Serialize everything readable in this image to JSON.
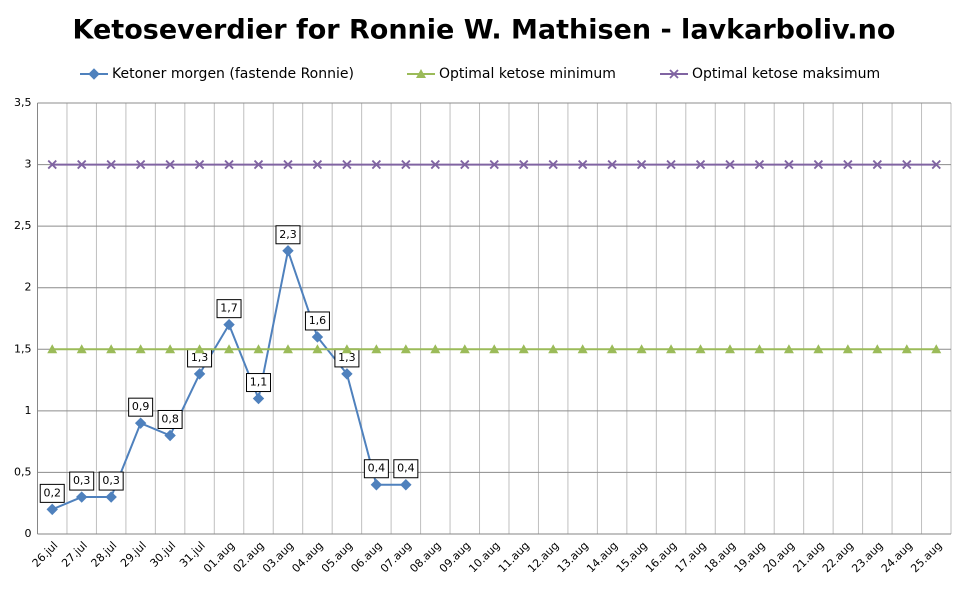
{
  "chart_data": {
    "type": "line",
    "title": "Ketoseverdier for Ronnie W. Mathisen - lavkarboliv.no",
    "categories": [
      "26.jul",
      "27.jul",
      "28.jul",
      "29.jul",
      "30.jul",
      "31.jul",
      "01.aug",
      "02.aug",
      "03.aug",
      "04.aug",
      "05.aug",
      "06.aug",
      "07.aug",
      "08.aug",
      "09.aug",
      "10.aug",
      "11.aug",
      "12.aug",
      "13.aug",
      "14.aug",
      "15.aug",
      "16.aug",
      "17.aug",
      "18.aug",
      "19.aug",
      "20.aug",
      "21.aug",
      "22.aug",
      "23.aug",
      "24.aug",
      "25.aug"
    ],
    "series": [
      {
        "name": "Ketoner morgen (fastende Ronnie)",
        "color": "#4f81bd",
        "marker": "diamond",
        "values": [
          0.2,
          0.3,
          0.3,
          0.9,
          0.8,
          1.3,
          1.7,
          1.1,
          2.3,
          1.6,
          1.3,
          0.4,
          0.4,
          null,
          null,
          null,
          null,
          null,
          null,
          null,
          null,
          null,
          null,
          null,
          null,
          null,
          null,
          null,
          null,
          null,
          null
        ],
        "value_labels": [
          "0,2",
          "0,3",
          "0,3",
          "0,9",
          "0,8",
          "1,3",
          "1,7",
          "1,1",
          "2,3",
          "1,6",
          "1,3",
          "0,4",
          "0,4",
          null,
          null,
          null,
          null,
          null,
          null,
          null,
          null,
          null,
          null,
          null,
          null,
          null,
          null,
          null,
          null,
          null,
          null
        ]
      },
      {
        "name": "Optimal ketose minimum",
        "color": "#9bbb59",
        "marker": "triangle",
        "values": [
          1.5,
          1.5,
          1.5,
          1.5,
          1.5,
          1.5,
          1.5,
          1.5,
          1.5,
          1.5,
          1.5,
          1.5,
          1.5,
          1.5,
          1.5,
          1.5,
          1.5,
          1.5,
          1.5,
          1.5,
          1.5,
          1.5,
          1.5,
          1.5,
          1.5,
          1.5,
          1.5,
          1.5,
          1.5,
          1.5,
          1.5
        ]
      },
      {
        "name": "Optimal ketose maksimum",
        "color": "#8064a2",
        "marker": "x",
        "values": [
          3,
          3,
          3,
          3,
          3,
          3,
          3,
          3,
          3,
          3,
          3,
          3,
          3,
          3,
          3,
          3,
          3,
          3,
          3,
          3,
          3,
          3,
          3,
          3,
          3,
          3,
          3,
          3,
          3,
          3,
          3
        ]
      }
    ],
    "ylim": [
      0,
      3.5
    ],
    "yticks": [
      0,
      {
        "value": 0.5,
        "label": "0,5"
      },
      1,
      {
        "value": 1.5,
        "label": "1,5"
      },
      2,
      {
        "value": 2.5,
        "label": "2,5"
      },
      3,
      {
        "value": 3.5,
        "label": "3,5"
      }
    ],
    "grid": true,
    "legend": "top"
  }
}
